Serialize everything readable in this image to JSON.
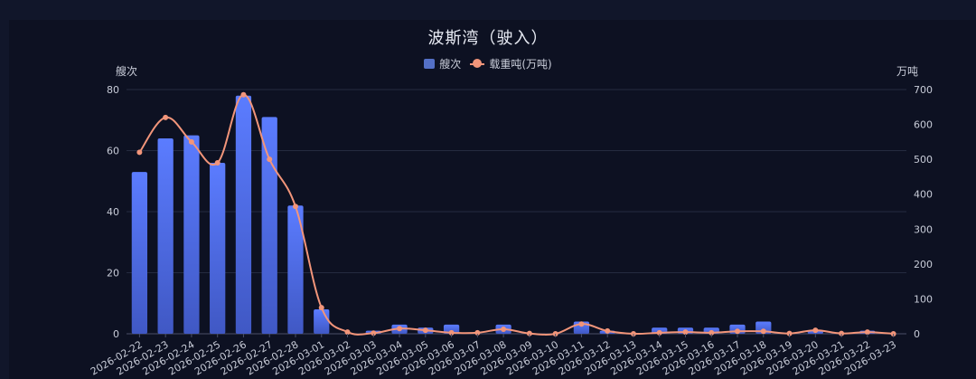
{
  "chart_data": {
    "type": "bar",
    "title": "波斯湾（驶入）",
    "legend_position": "top-center",
    "grid": true,
    "categories": [
      "2026-02-22",
      "2026-02-23",
      "2026-02-24",
      "2026-02-25",
      "2026-02-26",
      "2026-02-27",
      "2026-02-28",
      "2026-03-01",
      "2026-03-02",
      "2026-03-03",
      "2026-03-04",
      "2026-03-05",
      "2026-03-06",
      "2026-03-07",
      "2026-03-08",
      "2026-03-09",
      "2026-03-10",
      "2026-03-11",
      "2026-03-12",
      "2026-03-13",
      "2026-03-14",
      "2026-03-15",
      "2026-03-16",
      "2026-03-17",
      "2026-03-18",
      "2026-03-19",
      "2026-03-20",
      "2026-03-21",
      "2026-03-22",
      "2026-03-23"
    ],
    "ylabel_left": "艘次",
    "ylabel_right": "万吨",
    "ylim_left": [
      0,
      80
    ],
    "yticks_left": [
      0,
      20,
      40,
      60,
      80
    ],
    "ylim_right": [
      0,
      700
    ],
    "yticks_right": [
      0,
      100,
      200,
      300,
      400,
      500,
      600,
      700
    ],
    "series": [
      {
        "name": "艘次",
        "type": "bar",
        "axis": "left",
        "color": "#5470c6",
        "values": [
          53,
          64,
          65,
          56,
          78,
          71,
          42,
          8,
          0,
          1,
          3,
          2,
          3,
          0,
          3,
          0,
          0,
          4,
          1,
          0,
          2,
          2,
          2,
          3,
          4,
          0,
          1,
          0,
          1,
          0
        ]
      },
      {
        "name": "载重吨(万吨)",
        "type": "line",
        "axis": "right",
        "color": "#f2957a",
        "smooth": true,
        "values": [
          520,
          620,
          550,
          490,
          685,
          500,
          365,
          75,
          5,
          2,
          15,
          10,
          3,
          3,
          13,
          1,
          0,
          28,
          8,
          0,
          3,
          5,
          3,
          7,
          7,
          1,
          10,
          1,
          5,
          0
        ]
      }
    ]
  }
}
